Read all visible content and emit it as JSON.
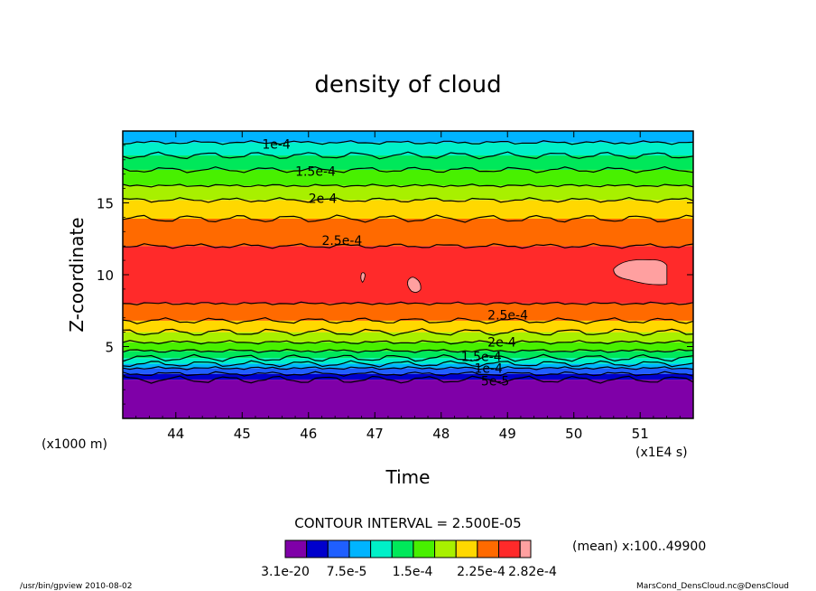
{
  "chart_data": {
    "type": "heatmap",
    "title": "density of cloud",
    "xlabel": "Time",
    "ylabel": "Z-coordinate",
    "x_unit": "(x1E4 s)",
    "y_unit": "(x1000 m)",
    "xlim": [
      43.2,
      51.8
    ],
    "ylim": [
      0,
      20
    ],
    "x_ticks": [
      44,
      45,
      46,
      47,
      48,
      49,
      50,
      51
    ],
    "y_ticks": [
      5,
      10,
      15
    ],
    "x_tick_labels": [
      "44",
      "45",
      "46",
      "47",
      "48",
      "49",
      "50",
      "51"
    ],
    "y_tick_labels": [
      "5",
      "10",
      "15"
    ],
    "contour_interval": "CONTOUR INTERVAL = 2.500E-05",
    "mean_note": "(mean) x:100..49900",
    "colorbar": {
      "labels": [
        "3.1e-20",
        "7.5e-5",
        "1.5e-4",
        "2.25e-4",
        "2.82e-4"
      ],
      "colors": [
        "#7f00a8",
        "#0000cc",
        "#1f5fff",
        "#00b4ff",
        "#00f0c8",
        "#00e85a",
        "#48f000",
        "#a8f000",
        "#ffd800",
        "#ff6a00",
        "#ff2a2a",
        "#ffa0a0"
      ]
    },
    "bands": [
      {
        "z": [
          0,
          2.7
        ],
        "color": "#7f00a8"
      },
      {
        "z": [
          2.7,
          3.1
        ],
        "color": "#0000cc"
      },
      {
        "z": [
          3.1,
          3.5
        ],
        "color": "#1f5fff"
      },
      {
        "z": [
          3.5,
          3.8
        ],
        "color": "#00b4ff"
      },
      {
        "z": [
          3.8,
          4.2
        ],
        "color": "#00f0c8"
      },
      {
        "z": [
          4.2,
          4.7
        ],
        "color": "#00e85a"
      },
      {
        "z": [
          4.7,
          5.3
        ],
        "color": "#48f000"
      },
      {
        "z": [
          5.3,
          6.0
        ],
        "color": "#a8f000"
      },
      {
        "z": [
          6.0,
          6.8
        ],
        "color": "#ffd800"
      },
      {
        "z": [
          6.8,
          8.0
        ],
        "color": "#ff6a00"
      },
      {
        "z": [
          8.0,
          12.0
        ],
        "color": "#ff2a2a"
      },
      {
        "z": [
          12.0,
          13.9
        ],
        "color": "#ff6a00"
      },
      {
        "z": [
          13.9,
          15.2
        ],
        "color": "#ffd800"
      },
      {
        "z": [
          15.2,
          16.2
        ],
        "color": "#a8f000"
      },
      {
        "z": [
          16.2,
          17.3
        ],
        "color": "#48f000"
      },
      {
        "z": [
          17.3,
          18.3
        ],
        "color": "#00e85a"
      },
      {
        "z": [
          18.3,
          19.2
        ],
        "color": "#00f0c8"
      },
      {
        "z": [
          19.2,
          20.0
        ],
        "color": "#00b4ff"
      }
    ],
    "contour_labels": [
      {
        "text": "1e-4",
        "x": 45.3,
        "z": 19.1
      },
      {
        "text": "1.5e-4",
        "x": 45.8,
        "z": 17.2
      },
      {
        "text": "2e-4",
        "x": 46.0,
        "z": 15.3
      },
      {
        "text": "2.5e-4",
        "x": 46.2,
        "z": 12.4
      },
      {
        "text": "2.5e-4",
        "x": 48.7,
        "z": 7.2
      },
      {
        "text": "2e-4",
        "x": 48.7,
        "z": 5.3
      },
      {
        "text": "1.5e-4",
        "x": 48.3,
        "z": 4.3
      },
      {
        "text": "1e-4",
        "x": 48.5,
        "z": 3.5
      },
      {
        "text": "5e-5",
        "x": 48.6,
        "z": 2.6
      }
    ]
  },
  "footer": {
    "left": "/usr/bin/gpview  2010-08-02",
    "right": "MarsCond_DensCloud.nc@DensCloud"
  }
}
